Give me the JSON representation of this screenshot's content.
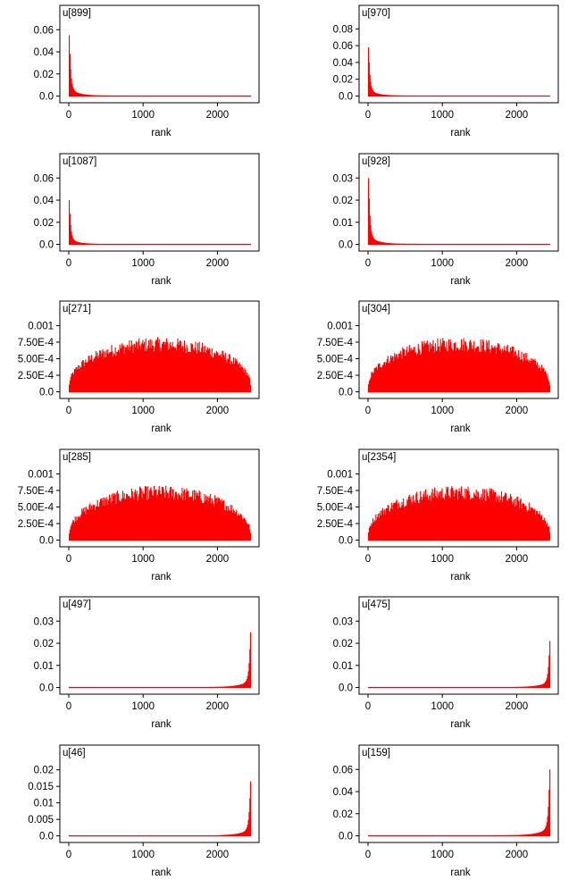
{
  "chart_data": [
    {
      "type": "bar",
      "title": "u[899]",
      "xlabel": "rank",
      "xlim": [
        -120,
        2560
      ],
      "ylim": [
        -0.006,
        0.082
      ],
      "xticks": [
        "0",
        "1000",
        "2000"
      ],
      "yticks": [
        "0.0",
        "0.02",
        "0.04",
        "0.06"
      ],
      "x_range": [
        0,
        2450
      ],
      "shape": "head",
      "peak": 0.055,
      "color": "#ff0000"
    },
    {
      "type": "bar",
      "title": "u[970]",
      "xlabel": "rank",
      "xlim": [
        -120,
        2560
      ],
      "ylim": [
        -0.008,
        0.108
      ],
      "xticks": [
        "0",
        "1000",
        "2000"
      ],
      "yticks": [
        "0.0",
        "0.02",
        "0.04",
        "0.06",
        "0.08"
      ],
      "x_range": [
        0,
        2450
      ],
      "shape": "head",
      "peak": 0.058,
      "color": "#ff0000"
    },
    {
      "type": "bar",
      "title": "u[1087]",
      "xlabel": "rank",
      "xlim": [
        -120,
        2560
      ],
      "ylim": [
        -0.006,
        0.082
      ],
      "xticks": [
        "0",
        "1000",
        "2000"
      ],
      "yticks": [
        "0.0",
        "0.02",
        "0.04",
        "0.06"
      ],
      "x_range": [
        0,
        2450
      ],
      "shape": "head",
      "peak": 0.04,
      "color": "#ff0000"
    },
    {
      "type": "bar",
      "title": "u[928]",
      "xlabel": "rank",
      "xlim": [
        -120,
        2560
      ],
      "ylim": [
        -0.003,
        0.041
      ],
      "xticks": [
        "0",
        "1000",
        "2000"
      ],
      "yticks": [
        "0.0",
        "0.01",
        "0.02",
        "0.03"
      ],
      "x_range": [
        0,
        2450
      ],
      "shape": "head",
      "peak": 0.03,
      "color": "#ff0000"
    },
    {
      "type": "bar",
      "title": "u[271]",
      "xlabel": "rank",
      "xlim": [
        -120,
        2560
      ],
      "ylim": [
        -0.0001,
        0.00137
      ],
      "xticks": [
        "0",
        "1000",
        "2000"
      ],
      "yticks": [
        "0.0",
        "2.50E-4",
        "5.00E-4",
        "7.50E-4",
        "0.001"
      ],
      "x_range": [
        0,
        2450
      ],
      "shape": "dome",
      "peak": 0.00088,
      "color": "#ff0000"
    },
    {
      "type": "bar",
      "title": "u[304]",
      "xlabel": "rank",
      "xlim": [
        -120,
        2560
      ],
      "ylim": [
        -0.0001,
        0.00137
      ],
      "xticks": [
        "0",
        "1000",
        "2000"
      ],
      "yticks": [
        "0.0",
        "2.50E-4",
        "5.00E-4",
        "7.50E-4",
        "0.001"
      ],
      "x_range": [
        0,
        2450
      ],
      "shape": "dome",
      "peak": 0.00088,
      "color": "#ff0000"
    },
    {
      "type": "bar",
      "title": "u[285]",
      "xlabel": "rank",
      "xlim": [
        -120,
        2560
      ],
      "ylim": [
        -0.0001,
        0.00137
      ],
      "xticks": [
        "0",
        "1000",
        "2000"
      ],
      "yticks": [
        "0.0",
        "2.50E-4",
        "5.00E-4",
        "7.50E-4",
        "0.001"
      ],
      "x_range": [
        0,
        2450
      ],
      "shape": "dome",
      "peak": 0.00088,
      "color": "#ff0000"
    },
    {
      "type": "bar",
      "title": "u[2354]",
      "xlabel": "rank",
      "xlim": [
        -120,
        2560
      ],
      "ylim": [
        -0.0001,
        0.00137
      ],
      "xticks": [
        "0",
        "1000",
        "2000"
      ],
      "yticks": [
        "0.0",
        "2.50E-4",
        "5.00E-4",
        "7.50E-4",
        "0.001"
      ],
      "x_range": [
        0,
        2450
      ],
      "shape": "dome",
      "peak": 0.00088,
      "color": "#ff0000"
    },
    {
      "type": "bar",
      "title": "u[497]",
      "xlabel": "rank",
      "xlim": [
        -120,
        2560
      ],
      "ylim": [
        -0.003,
        0.041
      ],
      "xticks": [
        "0",
        "1000",
        "2000"
      ],
      "yticks": [
        "0.0",
        "0.01",
        "0.02",
        "0.03"
      ],
      "x_range": [
        0,
        2450
      ],
      "shape": "tail",
      "peak": 0.025,
      "color": "#ff0000"
    },
    {
      "type": "bar",
      "title": "u[475]",
      "xlabel": "rank",
      "xlim": [
        -120,
        2560
      ],
      "ylim": [
        -0.003,
        0.041
      ],
      "xticks": [
        "0",
        "1000",
        "2000"
      ],
      "yticks": [
        "0.0",
        "0.01",
        "0.02",
        "0.03"
      ],
      "x_range": [
        0,
        2450
      ],
      "shape": "tail",
      "peak": 0.021,
      "color": "#ff0000"
    },
    {
      "type": "bar",
      "title": "u[46]",
      "xlabel": "rank",
      "xlim": [
        -120,
        2560
      ],
      "ylim": [
        -0.002,
        0.0275
      ],
      "xticks": [
        "0",
        "1000",
        "2000"
      ],
      "yticks": [
        "0.0",
        "0.005",
        "0.01",
        "0.015",
        "0.02"
      ],
      "x_range": [
        0,
        2450
      ],
      "shape": "tail",
      "peak": 0.0165,
      "color": "#ff0000"
    },
    {
      "type": "bar",
      "title": "u[159]",
      "xlabel": "rank",
      "xlim": [
        -120,
        2560
      ],
      "ylim": [
        -0.006,
        0.082
      ],
      "xticks": [
        "0",
        "1000",
        "2000"
      ],
      "yticks": [
        "0.0",
        "0.02",
        "0.04",
        "0.06"
      ],
      "x_range": [
        0,
        2450
      ],
      "shape": "tail",
      "peak": 0.06,
      "color": "#ff0000"
    }
  ]
}
